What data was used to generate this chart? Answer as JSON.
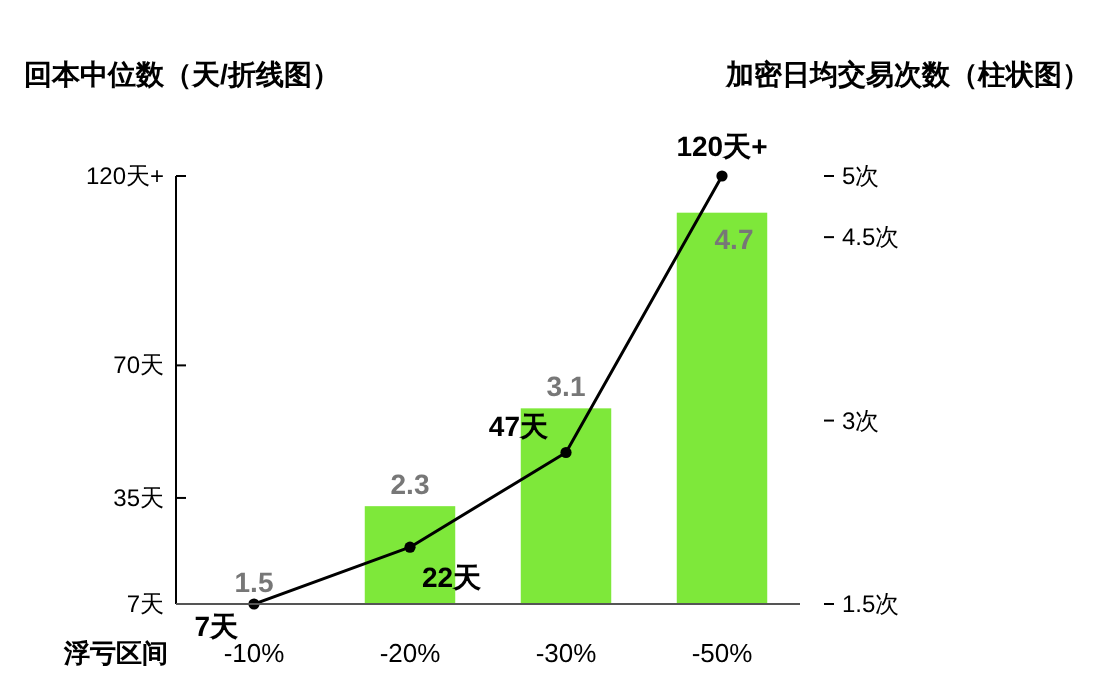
{
  "chart_data": {
    "type": "bar",
    "categories": [
      "-10%",
      "-20%",
      "-30%",
      "-50%"
    ],
    "xlabel": "浮亏区间",
    "ylabel": "回本中位数（天/折线图）",
    "y2label": "加密日均交易次数（柱状图）",
    "ylim": [
      7,
      120
    ],
    "yticks": [
      {
        "value": 7,
        "label": "7天"
      },
      {
        "value": 35,
        "label": "35天"
      },
      {
        "value": 70,
        "label": "70天"
      },
      {
        "value": 120,
        "label": "120天+"
      }
    ],
    "y2lim": [
      1.5,
      5
    ],
    "y2ticks": [
      {
        "value": 1.5,
        "label": "1.5次"
      },
      {
        "value": 3,
        "label": "3次"
      },
      {
        "value": 4.5,
        "label": "4.5次"
      },
      {
        "value": 5,
        "label": "5次"
      }
    ],
    "data_labels": true,
    "marker": "circle",
    "line_style": "solid",
    "series": [
      {
        "axis": "y2",
        "color": "#7ee83a",
        "values": [
          1.5,
          2.3,
          3.1,
          4.7
        ]
      },
      {
        "type": "line",
        "axis": "y",
        "color": "#000000",
        "values": [
          7,
          22,
          47,
          120
        ],
        "value_labels": [
          "7天",
          "22天",
          "47天",
          "120天+"
        ]
      }
    ]
  }
}
